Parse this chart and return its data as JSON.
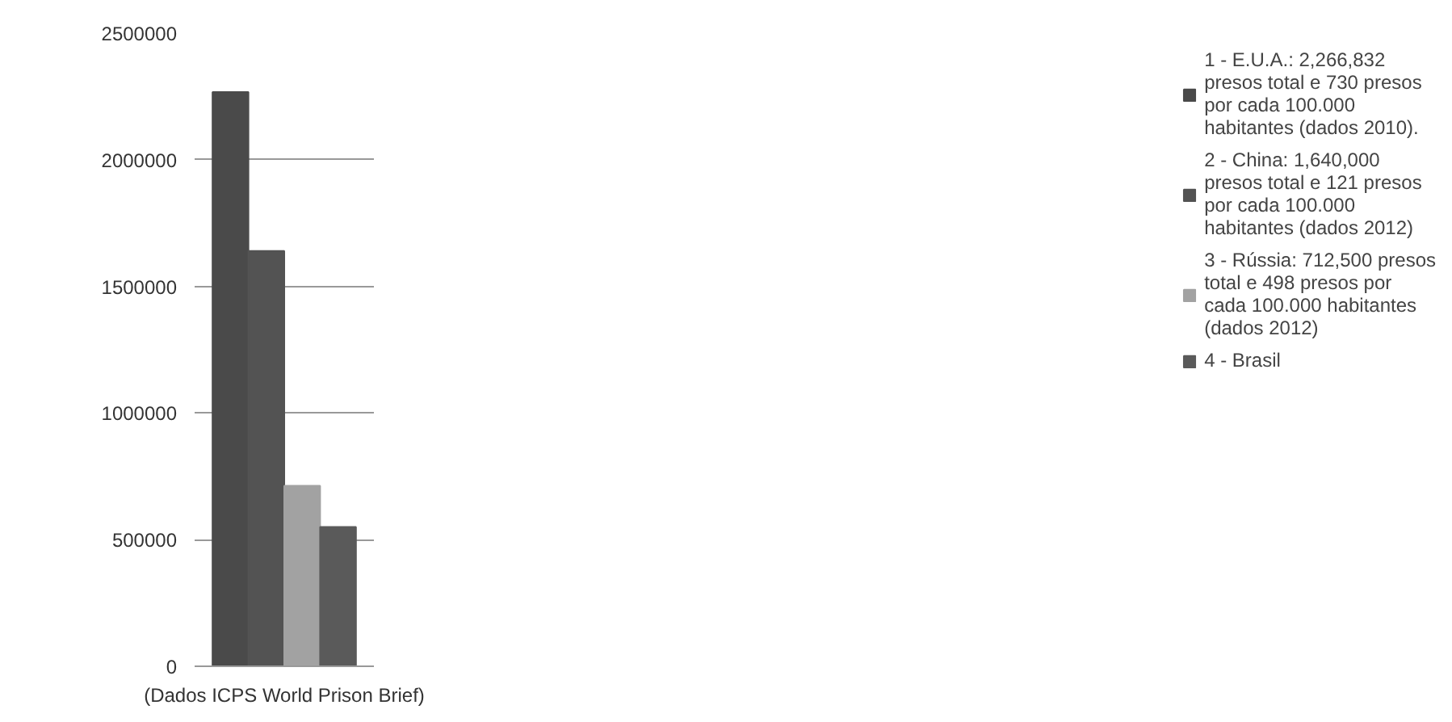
{
  "chart_data": {
    "type": "bar",
    "categories": [
      "(Dados ICPS World Prison Brief)"
    ],
    "series": [
      {
        "name": "1 - E.U.A.: 2,266,832 presos total e 730 presos por cada 100.000 habitantes (dados 2010).",
        "color": "#4a4a4a",
        "values": [
          2266832
        ]
      },
      {
        "name": "2 - China: 1,640,000 presos total e 121 presos por cada 100.000 habitantes (dados 2012)",
        "color": "#535353",
        "values": [
          1640000
        ]
      },
      {
        "name": "3 - Rússia: 712,500 presos total e 498 presos por cada 100.000 habitantes (dados 2012)",
        "color": "#a2a2a2",
        "values": [
          712500
        ]
      },
      {
        "name": "4 - Brasil",
        "color": "#5a5a5a",
        "values": [
          550000
        ]
      }
    ],
    "ylim": [
      0,
      2500000
    ],
    "yticks": [
      0,
      500000,
      1000000,
      1500000,
      2000000,
      2500000
    ],
    "grid": "y",
    "legend": "right"
  }
}
